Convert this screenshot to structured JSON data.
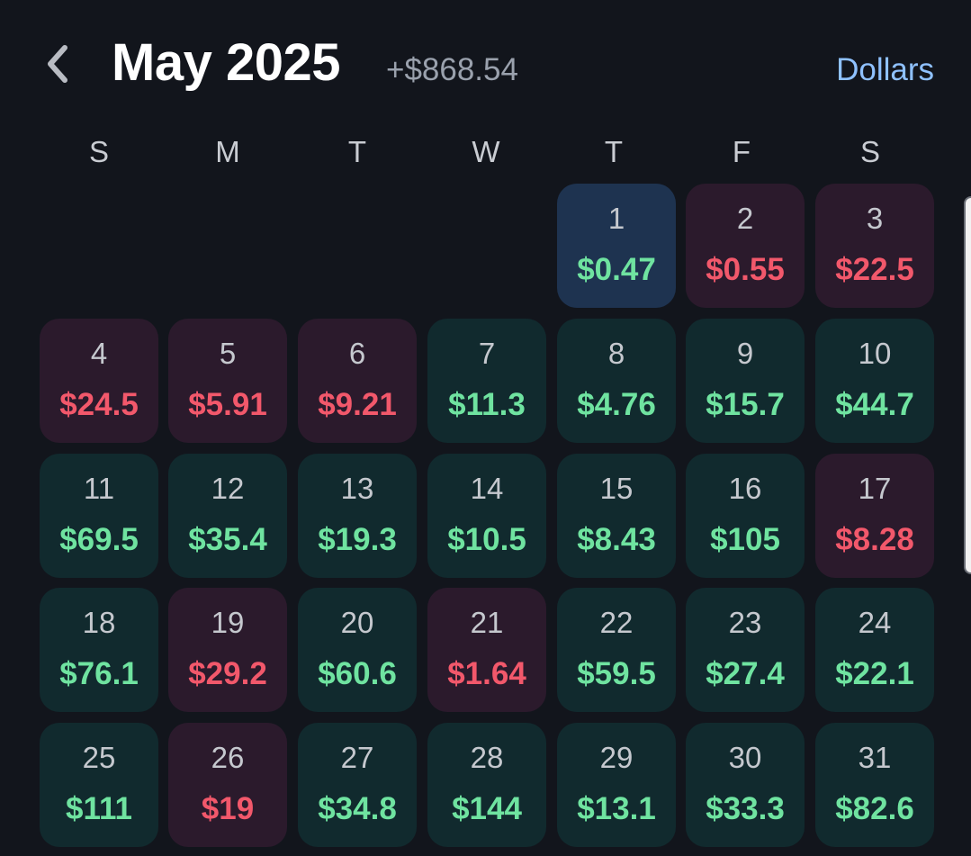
{
  "header": {
    "back_icon": "chevron-left-icon",
    "title": "May 2025",
    "total": "+$868.54",
    "unit_toggle": "Dollars"
  },
  "weekdays": [
    "S",
    "M",
    "T",
    "W",
    "T",
    "F",
    "S"
  ],
  "colors": {
    "background": "#12151c",
    "gain_text": "#6fe3a0",
    "loss_text": "#f2586b",
    "gain_cell": "#112a2e",
    "loss_cell": "#2b1a2c",
    "today_cell": "#1e3350",
    "accent": "#8fc1ff"
  },
  "calendar": {
    "first_weekday_index": 4,
    "days": [
      {
        "day": "1",
        "amount": "$0.47",
        "status": "today"
      },
      {
        "day": "2",
        "amount": "$0.55",
        "status": "loss"
      },
      {
        "day": "3",
        "amount": "$22.5",
        "status": "loss"
      },
      {
        "day": "4",
        "amount": "$24.5",
        "status": "loss"
      },
      {
        "day": "5",
        "amount": "$5.91",
        "status": "loss"
      },
      {
        "day": "6",
        "amount": "$9.21",
        "status": "loss"
      },
      {
        "day": "7",
        "amount": "$11.3",
        "status": "gain"
      },
      {
        "day": "8",
        "amount": "$4.76",
        "status": "gain"
      },
      {
        "day": "9",
        "amount": "$15.7",
        "status": "gain"
      },
      {
        "day": "10",
        "amount": "$44.7",
        "status": "gain"
      },
      {
        "day": "11",
        "amount": "$69.5",
        "status": "gain"
      },
      {
        "day": "12",
        "amount": "$35.4",
        "status": "gain"
      },
      {
        "day": "13",
        "amount": "$19.3",
        "status": "gain"
      },
      {
        "day": "14",
        "amount": "$10.5",
        "status": "gain"
      },
      {
        "day": "15",
        "amount": "$8.43",
        "status": "gain"
      },
      {
        "day": "16",
        "amount": "$105",
        "status": "gain"
      },
      {
        "day": "17",
        "amount": "$8.28",
        "status": "loss"
      },
      {
        "day": "18",
        "amount": "$76.1",
        "status": "gain"
      },
      {
        "day": "19",
        "amount": "$29.2",
        "status": "loss"
      },
      {
        "day": "20",
        "amount": "$60.6",
        "status": "gain"
      },
      {
        "day": "21",
        "amount": "$1.64",
        "status": "loss"
      },
      {
        "day": "22",
        "amount": "$59.5",
        "status": "gain"
      },
      {
        "day": "23",
        "amount": "$27.4",
        "status": "gain"
      },
      {
        "day": "24",
        "amount": "$22.1",
        "status": "gain"
      },
      {
        "day": "25",
        "amount": "$111",
        "status": "gain"
      },
      {
        "day": "26",
        "amount": "$19",
        "status": "loss"
      },
      {
        "day": "27",
        "amount": "$34.8",
        "status": "gain"
      },
      {
        "day": "28",
        "amount": "$144",
        "status": "gain"
      },
      {
        "day": "29",
        "amount": "$13.1",
        "status": "gain"
      },
      {
        "day": "30",
        "amount": "$33.3",
        "status": "gain"
      },
      {
        "day": "31",
        "amount": "$82.6",
        "status": "gain"
      }
    ]
  }
}
